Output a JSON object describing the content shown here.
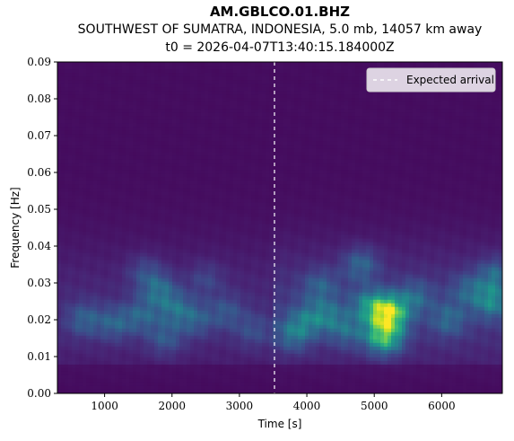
{
  "chart_data": {
    "type": "heatmap",
    "title": "AM.GBLCO.01.BHZ",
    "subtitle": "SOUTHWEST OF SUMATRA, INDONESIA, 5.0 mb, 14057 km away",
    "subtitle2": "t0 = 2026-04-07T13:40:15.184000Z",
    "xlabel": "Time [s]",
    "ylabel": "Frequency [Hz]",
    "xlim": [
      300,
      6900
    ],
    "ylim": [
      0.0,
      0.09
    ],
    "xticks": [
      1000,
      2000,
      3000,
      4000,
      5000,
      6000
    ],
    "xtick_labels": [
      "1000",
      "2000",
      "3000",
      "4000",
      "5000",
      "6000"
    ],
    "yticks": [
      0.0,
      0.01,
      0.02,
      0.03,
      0.04,
      0.05,
      0.06,
      0.07,
      0.08,
      0.09
    ],
    "ytick_labels": [
      "0.00",
      "0.01",
      "0.02",
      "0.03",
      "0.04",
      "0.05",
      "0.06",
      "0.07",
      "0.08",
      "0.09"
    ],
    "colormap": "viridis",
    "expected_arrival": 3520,
    "legend": {
      "location": "top-right",
      "entries": [
        {
          "label": "Expected arrival",
          "style": "dashed",
          "color": "#ffffff"
        }
      ]
    },
    "hotspots": [
      {
        "t": 5150,
        "f": 0.0222,
        "intensity": 1.0
      },
      {
        "t": 5250,
        "f": 0.0215,
        "intensity": 0.85
      },
      {
        "t": 5100,
        "f": 0.0155,
        "intensity": 0.75
      },
      {
        "t": 5200,
        "f": 0.0152,
        "intensity": 0.6
      },
      {
        "t": 4800,
        "f": 0.035,
        "intensity": 0.5
      },
      {
        "t": 4300,
        "f": 0.021,
        "intensity": 0.5
      },
      {
        "t": 3800,
        "f": 0.016,
        "intensity": 0.55
      },
      {
        "t": 4000,
        "f": 0.02,
        "intensity": 0.45
      },
      {
        "t": 4600,
        "f": 0.017,
        "intensity": 0.45
      },
      {
        "t": 4900,
        "f": 0.024,
        "intensity": 0.55
      },
      {
        "t": 5600,
        "f": 0.026,
        "intensity": 0.45
      },
      {
        "t": 6100,
        "f": 0.02,
        "intensity": 0.45
      },
      {
        "t": 6750,
        "f": 0.025,
        "intensity": 0.7
      },
      {
        "t": 6800,
        "f": 0.032,
        "intensity": 0.5
      },
      {
        "t": 6400,
        "f": 0.028,
        "intensity": 0.4
      },
      {
        "t": 4200,
        "f": 0.029,
        "intensity": 0.4
      },
      {
        "t": 1800,
        "f": 0.028,
        "intensity": 0.55
      },
      {
        "t": 2050,
        "f": 0.023,
        "intensity": 0.5
      },
      {
        "t": 1550,
        "f": 0.021,
        "intensity": 0.45
      },
      {
        "t": 1150,
        "f": 0.019,
        "intensity": 0.45
      },
      {
        "t": 700,
        "f": 0.02,
        "intensity": 0.45
      },
      {
        "t": 2350,
        "f": 0.02,
        "intensity": 0.4
      },
      {
        "t": 1900,
        "f": 0.015,
        "intensity": 0.4
      },
      {
        "t": 2800,
        "f": 0.022,
        "intensity": 0.35
      },
      {
        "t": 3200,
        "f": 0.017,
        "intensity": 0.3
      },
      {
        "t": 1600,
        "f": 0.033,
        "intensity": 0.3
      },
      {
        "t": 2500,
        "f": 0.031,
        "intensity": 0.25
      }
    ]
  }
}
